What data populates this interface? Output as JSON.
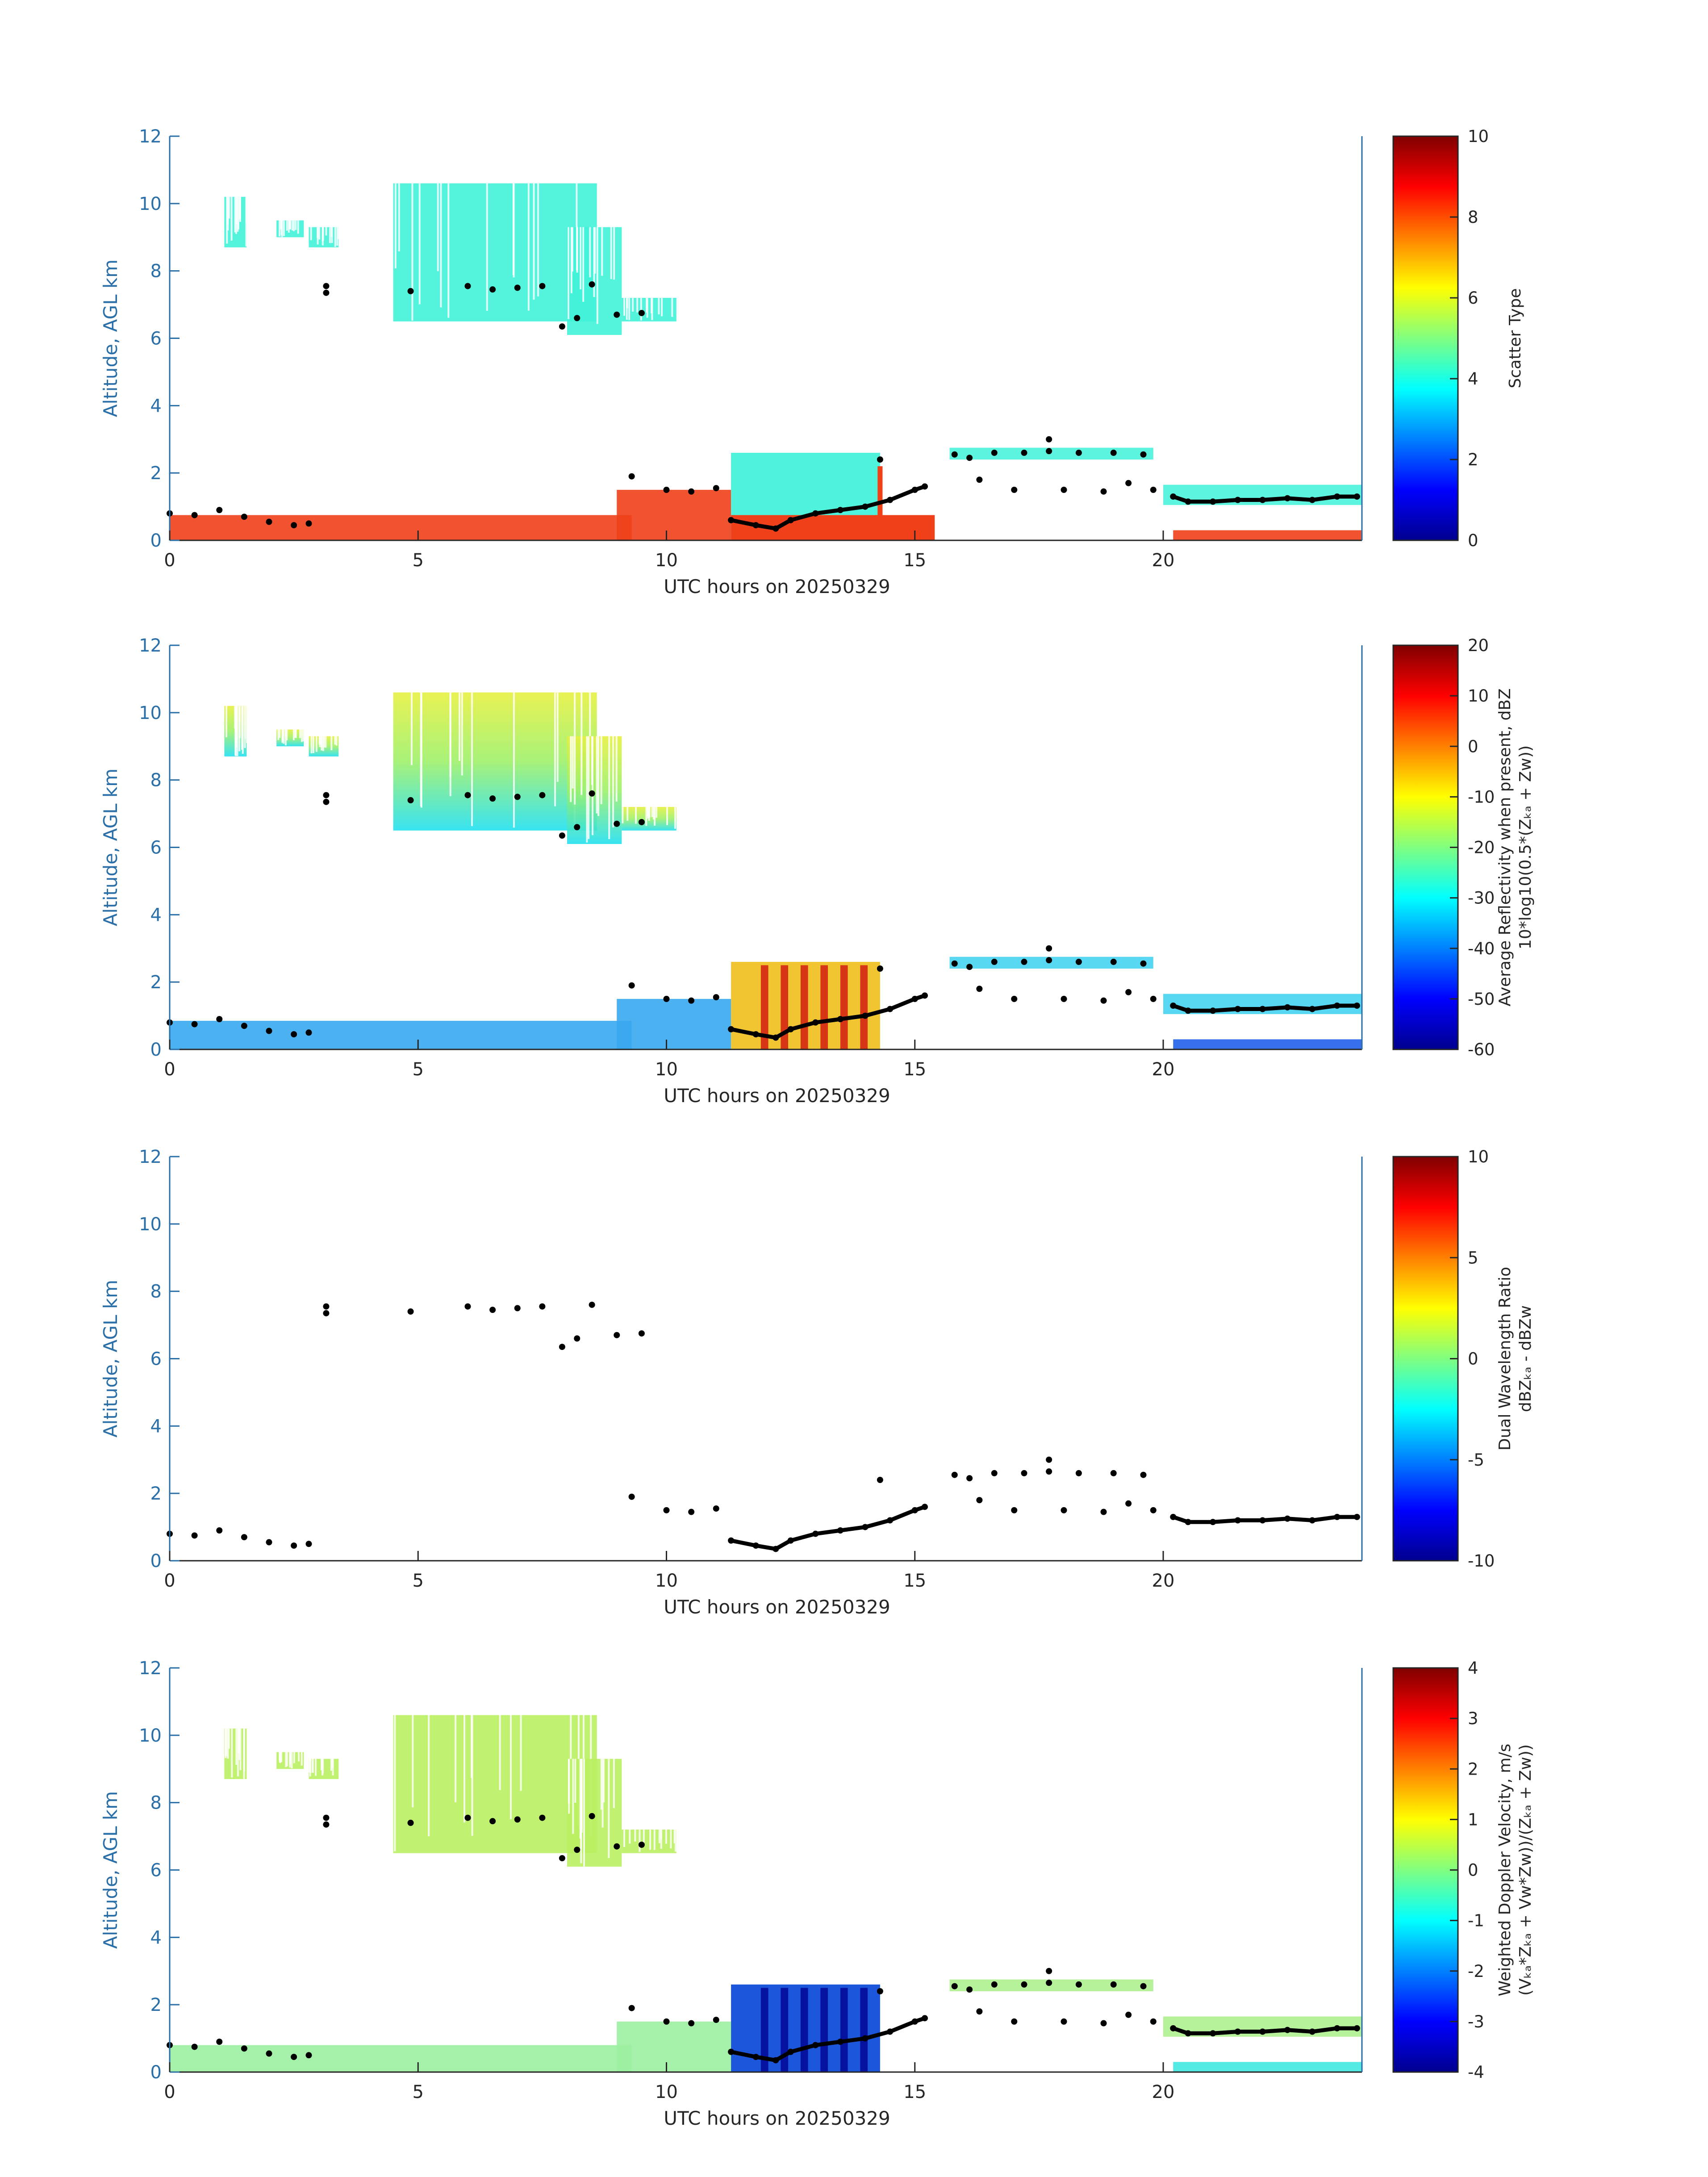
{
  "colors": {
    "y_axis": "#2a6fa8",
    "x_axis": "#262626",
    "black_marker": "#000000",
    "cyan": "#40f2d8",
    "orange_red": "#f0401a",
    "colormap": [
      "#00008f",
      "#0000ff",
      "#0080ff",
      "#00ffff",
      "#80ff80",
      "#ffff00",
      "#ff8000",
      "#ff0000",
      "#800000"
    ]
  },
  "chart_data": [
    {
      "type": "heatmap",
      "xlabel": "UTC hours on 20250329",
      "ylabel": "Altitude, AGL km",
      "xlim": [
        0,
        24
      ],
      "ylim": [
        0,
        12
      ],
      "xticks": [
        0,
        5,
        10,
        15,
        20
      ],
      "yticks": [
        0,
        2,
        4,
        6,
        8,
        10,
        12
      ],
      "colorbar": {
        "label_lines": [
          "Scatter Type"
        ],
        "range": [
          0,
          10
        ],
        "ticks": [
          0,
          2,
          4,
          6,
          8,
          10
        ]
      },
      "field": "scatter_type"
    },
    {
      "type": "heatmap",
      "xlabel": "UTC hours on 20250329",
      "ylabel": "Altitude, AGL km",
      "xlim": [
        0,
        24
      ],
      "ylim": [
        0,
        12
      ],
      "xticks": [
        0,
        5,
        10,
        15,
        20
      ],
      "yticks": [
        0,
        2,
        4,
        6,
        8,
        10,
        12
      ],
      "colorbar": {
        "label_lines": [
          "Average Reflectivity when present, dBZ",
          "10*log10(0.5*(Zₖₐ + Zᴡ))"
        ],
        "range": [
          -60,
          20
        ],
        "ticks": [
          -60,
          -50,
          -40,
          -30,
          -20,
          -10,
          0,
          10,
          20
        ]
      },
      "field": "reflectivity"
    },
    {
      "type": "heatmap",
      "xlabel": "UTC hours on 20250329",
      "ylabel": "Altitude, AGL km",
      "xlim": [
        0,
        24
      ],
      "ylim": [
        0,
        12
      ],
      "xticks": [
        0,
        5,
        10,
        15,
        20
      ],
      "yticks": [
        0,
        2,
        4,
        6,
        8,
        10,
        12
      ],
      "colorbar": {
        "label_lines": [
          "Dual Wavelength Ratio",
          "dBZₖₐ - dBZᴡ"
        ],
        "range": [
          -10,
          10
        ],
        "ticks": [
          -10,
          -5,
          0,
          5,
          10
        ]
      },
      "field": "dwr"
    },
    {
      "type": "heatmap",
      "xlabel": "UTC hours on 20250329",
      "ylabel": "Altitude, AGL km",
      "xlim": [
        0,
        24
      ],
      "ylim": [
        0,
        12
      ],
      "xticks": [
        0,
        5,
        10,
        15,
        20
      ],
      "yticks": [
        0,
        2,
        4,
        6,
        8,
        10,
        12
      ],
      "colorbar": {
        "label_lines": [
          "Weighted Doppler Velocity, m/s",
          "(Vₖₐ*Zₖₐ + Vᴡ*Zᴡ))/(Zₖₐ + Zᴡ))"
        ],
        "range": [
          -4,
          4
        ],
        "ticks": [
          -4,
          -3,
          -2,
          -1,
          0,
          1,
          2,
          3,
          4
        ]
      },
      "field": "doppler_velocity"
    }
  ],
  "cloud_regions": [
    {
      "t0": 1.1,
      "t1": 1.55,
      "z0": 8.7,
      "z1": 10.2
    },
    {
      "t0": 2.15,
      "t1": 2.7,
      "z0": 9.0,
      "z1": 9.5
    },
    {
      "t0": 2.8,
      "t1": 3.4,
      "z0": 8.7,
      "z1": 9.3
    },
    {
      "t0": 4.5,
      "t1": 8.6,
      "z0": 6.5,
      "z1": 10.6
    },
    {
      "t0": 8.0,
      "t1": 9.1,
      "z0": 6.1,
      "z1": 9.3
    },
    {
      "t0": 9.1,
      "t1": 10.2,
      "z0": 6.5,
      "z1": 7.2
    }
  ],
  "cloud_base_points": [
    {
      "t": 0.0,
      "z": 0.8
    },
    {
      "t": 0.5,
      "z": 0.75
    },
    {
      "t": 1.0,
      "z": 0.9
    },
    {
      "t": 1.5,
      "z": 0.7
    },
    {
      "t": 2.0,
      "z": 0.55
    },
    {
      "t": 2.5,
      "z": 0.45
    },
    {
      "t": 2.8,
      "z": 0.5
    },
    {
      "t": 3.15,
      "z": 7.55
    },
    {
      "t": 3.15,
      "z": 7.35
    },
    {
      "t": 4.85,
      "z": 7.4
    },
    {
      "t": 6.0,
      "z": 7.55
    },
    {
      "t": 6.5,
      "z": 7.45
    },
    {
      "t": 7.0,
      "z": 7.5
    },
    {
      "t": 7.5,
      "z": 7.55
    },
    {
      "t": 7.9,
      "z": 6.35
    },
    {
      "t": 8.2,
      "z": 6.6
    },
    {
      "t": 8.5,
      "z": 7.6
    },
    {
      "t": 9.0,
      "z": 6.7
    },
    {
      "t": 9.5,
      "z": 6.75
    },
    {
      "t": 9.3,
      "z": 1.9
    },
    {
      "t": 10.0,
      "z": 1.5
    },
    {
      "t": 10.5,
      "z": 1.45
    },
    {
      "t": 11.0,
      "z": 1.55
    },
    {
      "t": 11.3,
      "z": 0.6
    },
    {
      "t": 11.8,
      "z": 0.45
    },
    {
      "t": 12.2,
      "z": 0.35
    },
    {
      "t": 12.5,
      "z": 0.6
    },
    {
      "t": 13.0,
      "z": 0.8
    },
    {
      "t": 13.5,
      "z": 0.9
    },
    {
      "t": 14.0,
      "z": 1.0
    },
    {
      "t": 14.3,
      "z": 2.4
    },
    {
      "t": 14.5,
      "z": 1.2
    },
    {
      "t": 15.0,
      "z": 1.5
    },
    {
      "t": 15.2,
      "z": 1.6
    },
    {
      "t": 15.8,
      "z": 2.55
    },
    {
      "t": 16.1,
      "z": 2.45
    },
    {
      "t": 16.3,
      "z": 1.8
    },
    {
      "t": 16.6,
      "z": 2.6
    },
    {
      "t": 17.0,
      "z": 1.5
    },
    {
      "t": 17.2,
      "z": 2.6
    },
    {
      "t": 17.7,
      "z": 2.65
    },
    {
      "t": 17.7,
      "z": 3.0
    },
    {
      "t": 18.0,
      "z": 1.5
    },
    {
      "t": 18.3,
      "z": 2.6
    },
    {
      "t": 18.8,
      "z": 1.45
    },
    {
      "t": 19.0,
      "z": 2.6
    },
    {
      "t": 19.3,
      "z": 1.7
    },
    {
      "t": 19.6,
      "z": 2.55
    },
    {
      "t": 19.8,
      "z": 1.5
    },
    {
      "t": 20.2,
      "z": 1.3
    },
    {
      "t": 20.5,
      "z": 1.15
    },
    {
      "t": 21.0,
      "z": 1.15
    },
    {
      "t": 21.5,
      "z": 1.2
    },
    {
      "t": 22.0,
      "z": 1.2
    },
    {
      "t": 22.5,
      "z": 1.25
    },
    {
      "t": 23.0,
      "z": 1.2
    },
    {
      "t": 23.5,
      "z": 1.3
    },
    {
      "t": 23.9,
      "z": 1.3
    }
  ]
}
